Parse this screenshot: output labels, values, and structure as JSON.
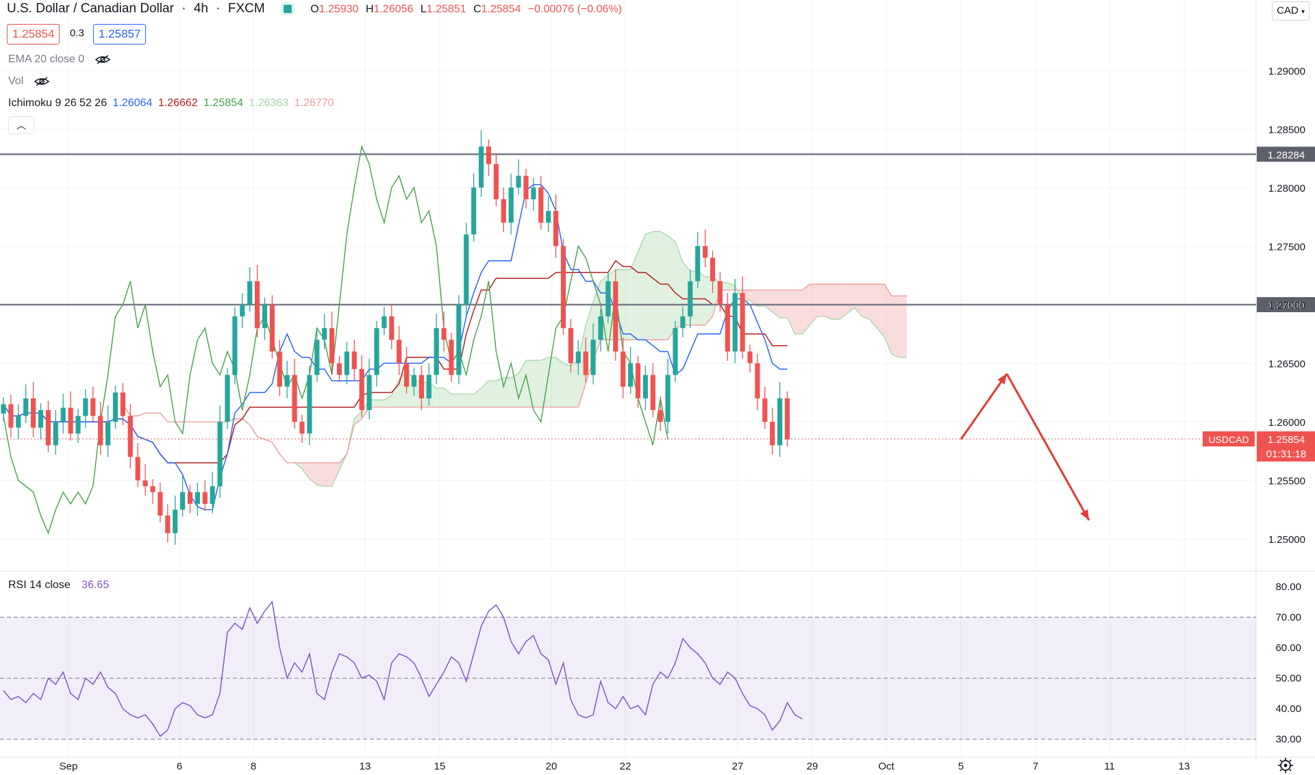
{
  "header": {
    "title": "U.S. Dollar / Canadian Dollar",
    "timeframe": "4h",
    "exchange": "FXCM",
    "open_label": "O",
    "open": "1.25930",
    "high_label": "H",
    "high": "1.26056",
    "low_label": "L",
    "low": "1.25851",
    "close_label": "C",
    "close": "1.25854",
    "change": "−0.00076 (−0.06%)",
    "bid": "1.25854",
    "spread": "0.3",
    "ask": "1.25857",
    "currency_menu": "CAD"
  },
  "indicators": {
    "ema": "EMA 20 close 0",
    "vol": "Vol",
    "ichimoku_label": "Ichimoku 9 26 52 26",
    "ichimoku_values": [
      "1.26064",
      "1.26662",
      "1.25854",
      "1.26363",
      "1.26770"
    ],
    "rsi_label": "RSI 14 close",
    "rsi_value": "36.65"
  },
  "price_axis": {
    "ticks": [
      "1.29000",
      "1.28500",
      "1.28000",
      "1.27500",
      "1.27000",
      "1.26500",
      "1.26000",
      "1.25500",
      "1.25000"
    ],
    "marked_levels": [
      "1.28284",
      "1.27000"
    ],
    "symbol_tag": "USDCAD",
    "last_price": "1.25854",
    "countdown": "01:31:18"
  },
  "rsi_axis": {
    "ticks": [
      "80.00",
      "70.00",
      "60.00",
      "50.00",
      "40.00",
      "30.00"
    ]
  },
  "time_axis": {
    "labels": [
      "Sep",
      "6",
      "8",
      "13",
      "15",
      "20",
      "22",
      "27",
      "29",
      "Oct",
      "5",
      "7",
      "11",
      "13"
    ]
  },
  "colors": {
    "up": "#26a69a",
    "down": "#ef5350",
    "conversion": "#2962ff",
    "base": "#b71c1c",
    "lagging": "#43a047",
    "span_a": "#a5d6a7",
    "span_b": "#ef9a9a",
    "rsi_line": "#7e57c2",
    "level_line": "#787b86",
    "arrow": "#e53935"
  },
  "chart_data": {
    "type": "candlestick",
    "symbol": "USDCAD",
    "timeframe": "4h",
    "horizontal_levels": [
      1.28284,
      1.27
    ],
    "ylim": [
      1.2475,
      1.2925
    ],
    "projection_arrows": [
      {
        "from": {
          "date": "Oct 5",
          "price": 1.2585
        },
        "to": {
          "date": "Oct 6",
          "price": 1.2641
        }
      },
      {
        "from": {
          "date": "Oct 6",
          "price": 1.2641
        },
        "to": {
          "date": "Oct 9",
          "price": 1.2516
        }
      }
    ],
    "price_path": [
      1.2615,
      1.2595,
      1.2605,
      1.262,
      1.2595,
      1.261,
      1.258,
      1.26,
      1.2612,
      1.259,
      1.2605,
      1.262,
      1.2605,
      1.258,
      1.26,
      1.2625,
      1.2605,
      1.257,
      1.255,
      1.2545,
      1.254,
      1.252,
      1.2505,
      1.2525,
      1.254,
      1.253,
      1.254,
      1.253,
      1.2545,
      1.26,
      1.264,
      1.269,
      1.27,
      1.272,
      1.268,
      1.27,
      1.266,
      1.263,
      1.264,
      1.26,
      1.259,
      1.264,
      1.267,
      1.268,
      1.265,
      1.264,
      1.266,
      1.2645,
      1.261,
      1.264,
      1.268,
      1.269,
      1.267,
      1.265,
      1.263,
      1.264,
      1.262,
      1.264,
      1.268,
      1.267,
      1.264,
      1.27,
      1.276,
      1.28,
      1.2835,
      1.282,
      1.279,
      1.277,
      1.28,
      1.281,
      1.279,
      1.28,
      1.277,
      1.278,
      1.275,
      1.268,
      1.265,
      1.266,
      1.264,
      1.267,
      1.269,
      1.272,
      1.266,
      1.263,
      1.265,
      1.262,
      1.264,
      1.261,
      1.26,
      1.264,
      1.268,
      1.269,
      1.272,
      1.275,
      1.274,
      1.272,
      1.27,
      1.266,
      1.271,
      1.266,
      1.265,
      1.262,
      1.26,
      1.258,
      1.262,
      1.2585
    ],
    "ichimoku": {
      "conversion_last": 1.26064,
      "base_last": 1.26662,
      "lagging_last": 1.25854,
      "span_a_last": 1.26363,
      "span_b_last": 1.2677
    },
    "rsi": {
      "period": 14,
      "last": 36.65,
      "levels": [
        70,
        30
      ],
      "ylim": [
        25,
        82
      ],
      "values": [
        46,
        43,
        44,
        42,
        45,
        43,
        50,
        48,
        52,
        45,
        43,
        50,
        48,
        52,
        47,
        45,
        40,
        38,
        37,
        38,
        35,
        31,
        33,
        40,
        42,
        41,
        38,
        37,
        38,
        45,
        65,
        68,
        66,
        73,
        68,
        72,
        75,
        60,
        50,
        55,
        52,
        58,
        45,
        43,
        52,
        58,
        57,
        55,
        50,
        51,
        49,
        43,
        55,
        58,
        57,
        55,
        50,
        44,
        48,
        52,
        57,
        55,
        49,
        58,
        67,
        72,
        74,
        70,
        62,
        58,
        62,
        64,
        58,
        56,
        48,
        55,
        43,
        38,
        37,
        38,
        49,
        42,
        40,
        44,
        40,
        41,
        38,
        48,
        52,
        50,
        55,
        63,
        60,
        58,
        55,
        50,
        48,
        52,
        50,
        45,
        41,
        40,
        38,
        33,
        36,
        42,
        38,
        36.65
      ]
    },
    "x_labels": [
      "Sep",
      "6",
      "8",
      "13",
      "15",
      "20",
      "22",
      "27",
      "29",
      "Oct",
      "5",
      "7",
      "11",
      "13"
    ]
  }
}
